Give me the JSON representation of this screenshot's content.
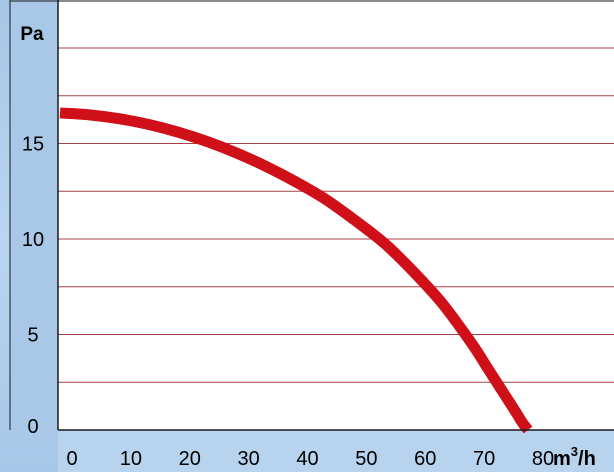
{
  "chart_data": {
    "type": "line",
    "ylabel": "Pa",
    "xlabel_unit": {
      "base": "m",
      "superscript": "3",
      "suffix": "/h"
    },
    "xlim": [
      0,
      80
    ],
    "ylim": [
      0,
      20
    ],
    "x_ticks": [
      "0",
      "10",
      "20",
      "30",
      "40",
      "50",
      "60",
      "70",
      "80"
    ],
    "y_ticks": [
      {
        "value": 0,
        "label": "0"
      },
      {
        "value": 5,
        "label": "5"
      },
      {
        "value": 10,
        "label": "10"
      },
      {
        "value": 15,
        "label": "15"
      }
    ],
    "grid": true,
    "grid_y_values": [
      2.5,
      5,
      7.5,
      10,
      12.5,
      15,
      17.5,
      20
    ],
    "series": [
      {
        "color": "#d01019",
        "x": [
          0,
          5,
          10,
          15,
          20,
          25,
          30,
          35,
          40,
          45,
          50,
          55,
          60,
          65,
          70,
          72.5,
          75,
          77.5,
          78.5,
          79.5
        ],
        "y": [
          16.6,
          16.5,
          16.3,
          16.0,
          15.6,
          15.1,
          14.5,
          13.8,
          13.0,
          12.1,
          11.0,
          9.8,
          8.3,
          6.6,
          4.5,
          3.3,
          2.1,
          0.9,
          0.4,
          0.0
        ]
      }
    ]
  },
  "colors": {
    "plot_background": "#ffffff",
    "grid": "#a8404a",
    "border": "#1a1a1a",
    "axis_panel": "#a9c8e8"
  }
}
